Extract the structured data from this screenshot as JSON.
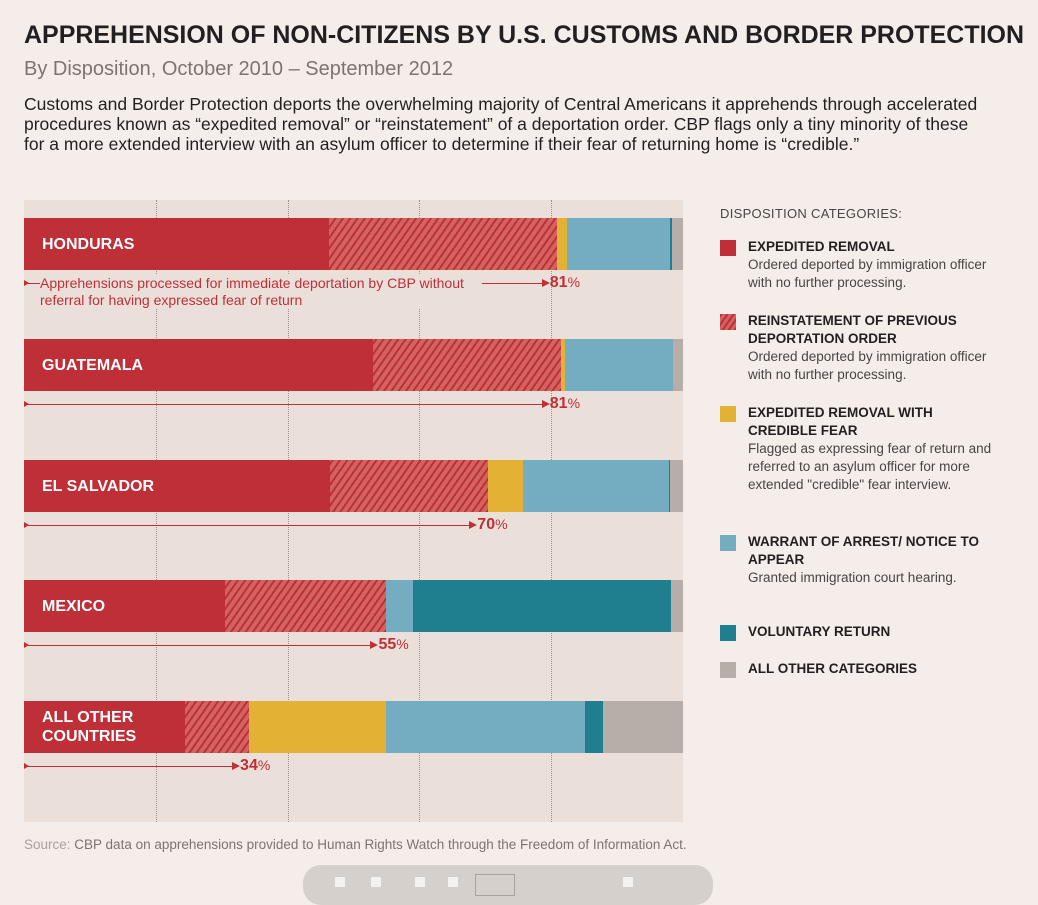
{
  "title": "APPREHENSION OF NON-CITIZENS BY U.S. CUSTOMS AND BORDER PROTECTION",
  "subtitle": "By Disposition, October 2010 – September 2012",
  "description": "Customs and Border Protection deports the overwhelming majority of Central Americans it apprehends through accelerated procedures known as “expedited removal” or “reinstatement” of a deportation order.  CBP flags only a tiny minority of these for a more extended interview with an asylum officer to determine if their fear of returning home is “credible.”",
  "annotation": "Apprehensions processed for immediate deportation by CBP without referral for having expressed fear of return",
  "source_label": "Source:",
  "source_text": " CBP data on apprehensions provided to Human Rights Watch through the Freedom of Information Act.",
  "chart_data": {
    "type": "bar",
    "orientation": "horizontal",
    "stacked": "100%",
    "grid": true,
    "xlim": [
      0,
      100
    ],
    "legend_title": "DISPOSITION CATEGORIES:",
    "legend_position": "right",
    "categories": [
      "HONDURAS",
      "GUATEMALA",
      "EL SALVADOR",
      "MEXICO",
      "ALL OTHER COUNTRIES"
    ],
    "immediate_deportation_pct": [
      "81",
      "81",
      "70",
      "55",
      "34"
    ],
    "series": [
      {
        "name": "EXPEDITED REMOVAL",
        "desc": "Ordered deported by immigration officer with no further processing.",
        "color": "#be2f38",
        "pattern": "solid",
        "values": [
          46.3,
          53.0,
          46.4,
          30.5,
          24.4
        ]
      },
      {
        "name": "REINSTATEMENT OF PREVIOUS DEPORTATION ORDER",
        "desc": "Ordered deported by immigration officer with no further processing.",
        "color": "#be2f38",
        "pattern": "hatched",
        "values": [
          34.6,
          28.5,
          24.0,
          24.4,
          9.7
        ]
      },
      {
        "name": "EXPEDITED REMOVAL WITH CREDIBLE FEAR",
        "desc": "Flagged as expressing fear of return and referred to an asylum officer for more extended \"credible\" fear interview.",
        "color": "#e3b134",
        "pattern": "solid",
        "values": [
          1.5,
          0.6,
          5.3,
          0,
          20.9
        ]
      },
      {
        "name": "WARRANT OF ARREST/ NOTICE TO APPEAR",
        "desc": "Granted immigration court hearing.",
        "color": "#74adc1",
        "pattern": "solid",
        "values": [
          15.6,
          16.4,
          22.2,
          4.1,
          30.2
        ]
      },
      {
        "name": "VOLUNTARY RETURN",
        "desc": "",
        "color": "#1f7f8e",
        "pattern": "solid",
        "values": [
          0.3,
          0,
          0.2,
          39.2,
          2.6
        ]
      },
      {
        "name": "ALL OTHER CATEGORIES",
        "desc": "",
        "color": "#b7aeaa",
        "pattern": "solid",
        "values": [
          1.7,
          1.5,
          1.9,
          1.8,
          12.2
        ]
      }
    ]
  }
}
